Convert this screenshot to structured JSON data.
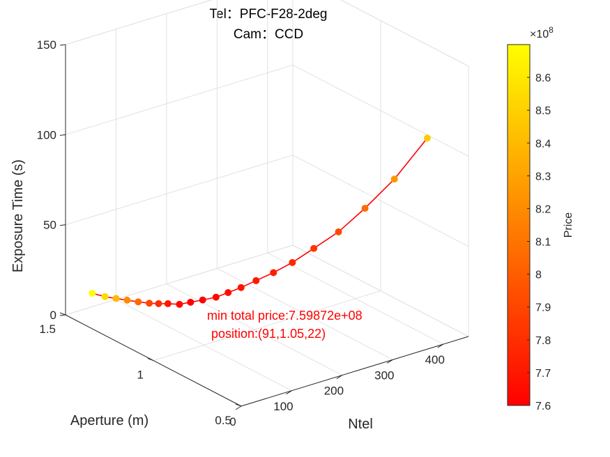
{
  "chart_data": {
    "type": "scatter",
    "title": [
      "Tel：PFC-F28-2deg",
      "Cam：CCD"
    ],
    "xlabel": "Ntel",
    "ylabel": "Aperture (m)",
    "zlabel": "Exposure Time (s)",
    "xlim": [
      0,
      450
    ],
    "ylim": [
      0.5,
      1.5
    ],
    "zlim": [
      0,
      150
    ],
    "xticks": [
      "0",
      "100",
      "200",
      "300",
      "400"
    ],
    "yticks": [
      "0.5",
      "1",
      "1.5"
    ],
    "zticks": [
      "0",
      "50",
      "100",
      "150"
    ],
    "grid": true,
    "colorbar": {
      "label": "Price",
      "exponent": "×10",
      "exponent_power": "8",
      "ticks": [
        "7.6",
        "7.7",
        "7.8",
        "7.9",
        "8",
        "8.1",
        "8.2",
        "8.3",
        "8.4",
        "8.5",
        "8.6"
      ],
      "range": [
        7.6,
        8.7
      ],
      "colormap": "autumn"
    },
    "series": [
      {
        "line_color": "#ff0000",
        "points": [
          {
            "x": 18,
            "y": 1.4,
            "z": 15.5,
            "price": 8.7
          },
          {
            "x": 26,
            "y": 1.35,
            "z": 15.5,
            "price": 8.55
          },
          {
            "x": 34,
            "y": 1.31,
            "z": 15.8,
            "price": 8.4
          },
          {
            "x": 42,
            "y": 1.27,
            "z": 16.2,
            "price": 8.2
          },
          {
            "x": 50,
            "y": 1.23,
            "z": 16.6,
            "price": 8.05
          },
          {
            "x": 58,
            "y": 1.19,
            "z": 17.2,
            "price": 7.9
          },
          {
            "x": 66,
            "y": 1.16,
            "z": 17.8,
            "price": 7.8
          },
          {
            "x": 74,
            "y": 1.13,
            "z": 18.6,
            "price": 7.7
          },
          {
            "x": 83,
            "y": 1.09,
            "z": 19.5,
            "price": 7.64
          },
          {
            "x": 91,
            "y": 1.05,
            "z": 22,
            "price": 7.6
          },
          {
            "x": 108,
            "y": 1.03,
            "z": 22.8,
            "price": 7.62
          },
          {
            "x": 124,
            "y": 1.0,
            "z": 24.5,
            "price": 7.64
          },
          {
            "x": 141,
            "y": 0.98,
            "z": 26.6,
            "price": 7.66
          },
          {
            "x": 158,
            "y": 0.955,
            "z": 29.2,
            "price": 7.68
          },
          {
            "x": 179,
            "y": 0.93,
            "z": 32.5,
            "price": 7.7
          },
          {
            "x": 203,
            "y": 0.9,
            "z": 36.4,
            "price": 7.73
          },
          {
            "x": 230,
            "y": 0.87,
            "z": 41.2,
            "price": 7.77
          },
          {
            "x": 262,
            "y": 0.84,
            "z": 47.8,
            "price": 7.83
          },
          {
            "x": 297,
            "y": 0.8,
            "z": 56.0,
            "price": 7.92
          },
          {
            "x": 339,
            "y": 0.77,
            "z": 67.0,
            "price": 8.06
          },
          {
            "x": 385,
            "y": 0.735,
            "z": 81.0,
            "price": 8.25
          },
          {
            "x": 438,
            "y": 0.7,
            "z": 101.0,
            "price": 8.48
          }
        ]
      }
    ],
    "annotations": [
      {
        "text": "min total price:7.59872e+08",
        "color": "#ff0000"
      },
      {
        "text": "position:(91,1.05,22)",
        "color": "#ff0000"
      }
    ]
  }
}
